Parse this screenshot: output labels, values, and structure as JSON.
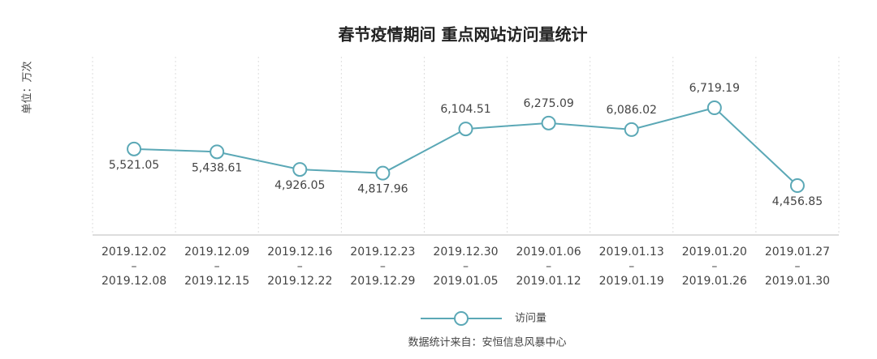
{
  "chart_data": {
    "type": "line",
    "title": "春节疫情期间  重点网站访问量统计",
    "y_label": "单位：万次",
    "source": "数据统计来自：安恒信息风暴中心",
    "categories": [
      [
        "2019.12.02",
        "–",
        "2019.12.08"
      ],
      [
        "2019.12.09",
        "–",
        "2019.12.15"
      ],
      [
        "2019.12.16",
        "–",
        "2019.12.22"
      ],
      [
        "2019.12.23",
        "–",
        "2019.12.29"
      ],
      [
        "2019.12.30",
        "–",
        "2019.01.05"
      ],
      [
        "2019.01.06",
        "–",
        "2019.01.12"
      ],
      [
        "2019.01.13",
        "–",
        "2019.01.19"
      ],
      [
        "2019.01.20",
        "–",
        "2019.01.26"
      ],
      [
        "2019.01.27",
        "–",
        "2019.01.30"
      ]
    ],
    "series": [
      {
        "name": "访问量",
        "color": "#5ba8b6",
        "values": [
          5521.05,
          5438.61,
          4926.05,
          4817.96,
          6104.51,
          6275.09,
          6086.02,
          6719.19,
          4456.85
        ],
        "value_labels": [
          "5,521.05",
          "5,438.61",
          "4,926.05",
          "4,817.96",
          "6,104.51",
          "6,275.09",
          "6,086.02",
          "6,719.19",
          "4,456.85"
        ]
      }
    ]
  }
}
